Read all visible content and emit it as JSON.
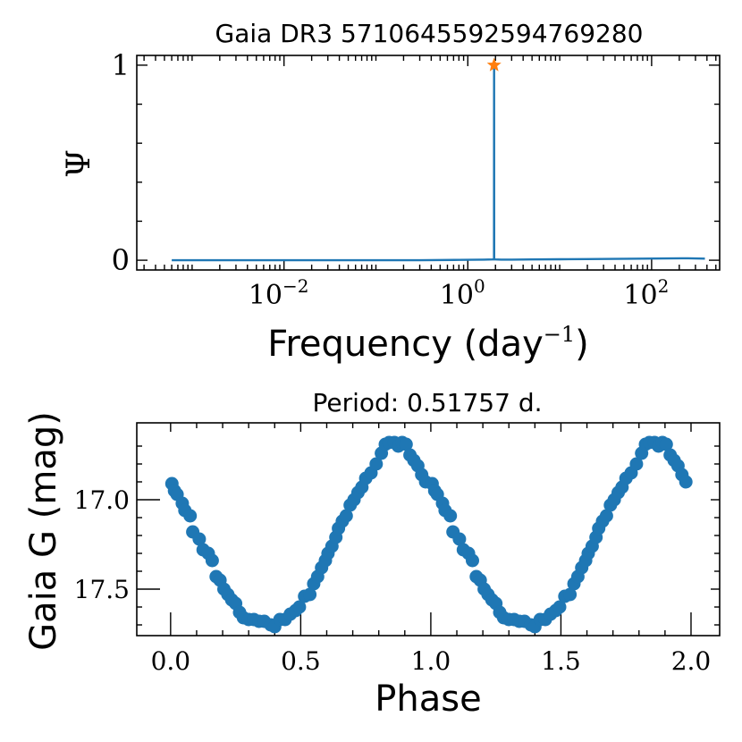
{
  "chart_data": [
    {
      "type": "line",
      "title": "Gaia DR3 5710645592594769280",
      "xlabel_main": "Frequency (day",
      "xlabel_sup": "−1",
      "xlabel_close": ")",
      "ylabel": "Ψ",
      "xscale": "log",
      "xlim": [
        0.00025,
        550
      ],
      "ylim": [
        -0.05,
        1.05
      ],
      "x_ticks": [
        {
          "value": 0.01,
          "base": "10",
          "exp": "−2"
        },
        {
          "value": 1,
          "base": "10",
          "exp": "0"
        },
        {
          "value": 100,
          "base": "10",
          "exp": "2"
        }
      ],
      "y_ticks": [
        {
          "value": 0,
          "label": "0"
        },
        {
          "value": 1,
          "label": "1"
        }
      ],
      "y_minor_ticks": [
        0.2,
        0.4,
        0.6,
        0.8
      ],
      "series": [
        {
          "name": "periodogram",
          "color": "#1f77b4",
          "x": [
            0.0006,
            0.001,
            0.003,
            0.01,
            0.03,
            0.1,
            0.3,
            0.8,
            1.5,
            1.85,
            1.93,
            1.932,
            1.936,
            2.0,
            2.3,
            3,
            5,
            10,
            20,
            40,
            80,
            150,
            250,
            380
          ],
          "y": [
            0.0,
            0.0,
            0.0,
            0.0,
            0.0,
            0.0,
            0.0,
            0.002,
            0.003,
            0.004,
            0.005,
            1.0,
            0.005,
            0.004,
            0.003,
            0.003,
            0.004,
            0.005,
            0.006,
            0.007,
            0.008,
            0.009,
            0.01,
            0.008
          ]
        }
      ],
      "peak_marker": {
        "x": 1.932,
        "y": 1.0,
        "color": "#ff7f0e",
        "symbol": "star"
      }
    },
    {
      "type": "scatter",
      "title": "Period: 0.51757 d.",
      "xlabel": "Phase",
      "ylabel": "Gaia G (mag)",
      "xlim": [
        -0.13,
        2.11
      ],
      "ylim": [
        17.76,
        16.57
      ],
      "y_inverted": true,
      "x_ticks": [
        {
          "value": 0.0,
          "label": "0.0"
        },
        {
          "value": 0.5,
          "label": "0.5"
        },
        {
          "value": 1.0,
          "label": "1.0"
        },
        {
          "value": 1.5,
          "label": "1.5"
        },
        {
          "value": 2.0,
          "label": "2.0"
        }
      ],
      "y_ticks": [
        {
          "value": 17.0,
          "label": "17.0"
        },
        {
          "value": 17.5,
          "label": "17.5"
        }
      ],
      "y_minor_ticks": [
        16.7,
        16.8,
        16.9,
        17.1,
        17.2,
        17.3,
        17.4,
        17.6,
        17.7
      ],
      "x_minor_ticks": [
        0.1,
        0.2,
        0.3,
        0.4,
        0.6,
        0.7,
        0.8,
        0.9,
        1.1,
        1.2,
        1.3,
        1.4,
        1.6,
        1.7,
        1.8,
        1.9
      ],
      "marker_color": "#1f77b4",
      "phase": [
        0.005,
        0.015,
        0.025,
        0.045,
        0.055,
        0.075,
        0.085,
        0.11,
        0.125,
        0.145,
        0.16,
        0.175,
        0.19,
        0.205,
        0.22,
        0.235,
        0.25,
        0.265,
        0.28,
        0.3,
        0.32,
        0.34,
        0.36,
        0.385,
        0.4,
        0.42,
        0.44,
        0.46,
        0.48,
        0.495,
        0.515,
        0.535,
        0.55,
        0.565,
        0.58,
        0.595,
        0.605,
        0.62,
        0.635,
        0.645,
        0.66,
        0.675,
        0.69,
        0.705,
        0.72,
        0.735,
        0.75,
        0.77,
        0.79,
        0.81,
        0.825,
        0.84,
        0.86,
        0.875,
        0.89,
        0.905,
        0.92,
        0.935,
        0.95,
        0.965,
        0.98
      ],
      "mag": [
        16.91,
        16.95,
        16.97,
        17.02,
        17.06,
        17.09,
        17.18,
        17.22,
        17.28,
        17.3,
        17.34,
        17.43,
        17.45,
        17.5,
        17.53,
        17.56,
        17.58,
        17.63,
        17.66,
        17.67,
        17.67,
        17.68,
        17.68,
        17.7,
        17.71,
        17.67,
        17.67,
        17.64,
        17.62,
        17.6,
        17.54,
        17.53,
        17.47,
        17.43,
        17.38,
        17.34,
        17.3,
        17.26,
        17.21,
        17.16,
        17.12,
        17.09,
        17.03,
        17.0,
        16.96,
        16.93,
        16.88,
        16.85,
        16.8,
        16.74,
        16.69,
        16.68,
        16.68,
        16.7,
        16.68,
        16.69,
        16.75,
        16.78,
        16.81,
        16.86,
        16.9
      ]
    }
  ]
}
